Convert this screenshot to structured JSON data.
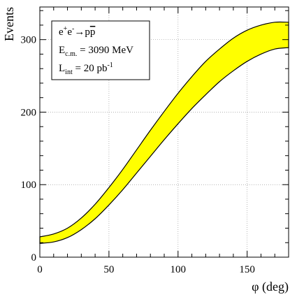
{
  "chart_data": {
    "type": "area",
    "xlabel": "φ (deg)",
    "ylabel": "Events",
    "xlim": [
      0,
      180
    ],
    "ylim": [
      0,
      345
    ],
    "x_ticks": [
      0,
      50,
      100,
      150
    ],
    "y_ticks": [
      0,
      100,
      200,
      300
    ],
    "grid": true,
    "band_color": "#ffff00",
    "band_edge_color": "#000000",
    "series": [
      {
        "x": [
          0,
          10,
          20,
          30,
          40,
          50,
          60,
          70,
          80,
          90,
          100,
          110,
          120,
          130,
          140,
          150,
          160,
          170,
          180
        ],
        "lower": [
          19,
          21,
          27,
          38,
          53,
          72,
          93,
          116,
          139,
          162,
          184,
          205,
          224,
          242,
          257,
          270,
          280,
          287,
          289
        ],
        "upper": [
          28,
          32,
          40,
          54,
          73,
          96,
          121,
          148,
          175,
          201,
          226,
          249,
          270,
          287,
          302,
          313,
          320,
          324,
          324
        ]
      }
    ],
    "legend": {
      "position": "top-left",
      "lines": [
        {
          "base": "e",
          "sup": "+"
        },
        {
          "base": "e",
          "sup": "-"
        },
        {
          "arrow": "→pp",
          "bar": "p"
        },
        {
          "E": "E",
          "E_sub": "c.m.",
          "E_val": " = 3090 MeV"
        },
        {
          "L": "L",
          "L_sub": "int",
          "L_val": " = 20 pb",
          "L_sup": "-1"
        }
      ],
      "reaction_parts": {
        "e1": "e",
        "sup1": "+",
        "e2": "e",
        "sup2": "-",
        "arrow_p": "→p",
        "pbar": "p"
      },
      "energy": {
        "main": "E",
        "sub": "c.m.",
        "value": " = 3090 MeV"
      },
      "lumi": {
        "main": "L",
        "sub": "int",
        "value": " = 20 pb",
        "sup": "-1"
      }
    }
  }
}
